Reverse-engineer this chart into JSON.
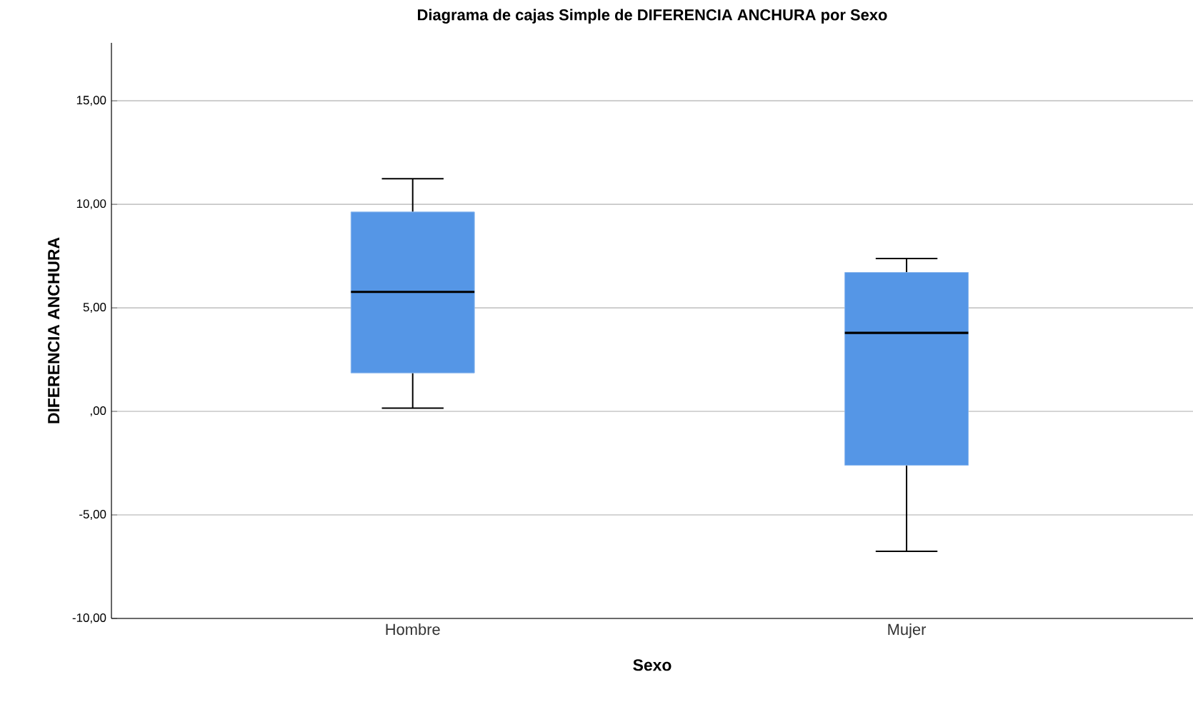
{
  "chart_data": {
    "type": "box",
    "title": "Diagrama de cajas Simple de DIFERENCIA ANCHURA por Sexo",
    "xlabel": "Sexo",
    "ylabel": "DIFERENCIA ANCHURA",
    "categories": [
      "Hombre",
      "Mujer"
    ],
    "color": "#5596e6",
    "boxes": [
      {
        "low": 0.16,
        "q1": 1.86,
        "median": 5.77,
        "q3": 9.63,
        "high": 11.24
      },
      {
        "low": -6.76,
        "q1": -2.6,
        "median": 3.79,
        "q3": 6.71,
        "high": 7.38
      }
    ],
    "ylim": [
      -10,
      17.8
    ],
    "yticks": [
      {
        "value": -10,
        "label": "-10,00"
      },
      {
        "value": -5,
        "label": "-5,00"
      },
      {
        "value": 0,
        "label": ",00"
      },
      {
        "value": 5,
        "label": "5,00"
      },
      {
        "value": 10,
        "label": "10,00"
      },
      {
        "value": 15,
        "label": "15,00"
      }
    ],
    "grid": "y"
  }
}
